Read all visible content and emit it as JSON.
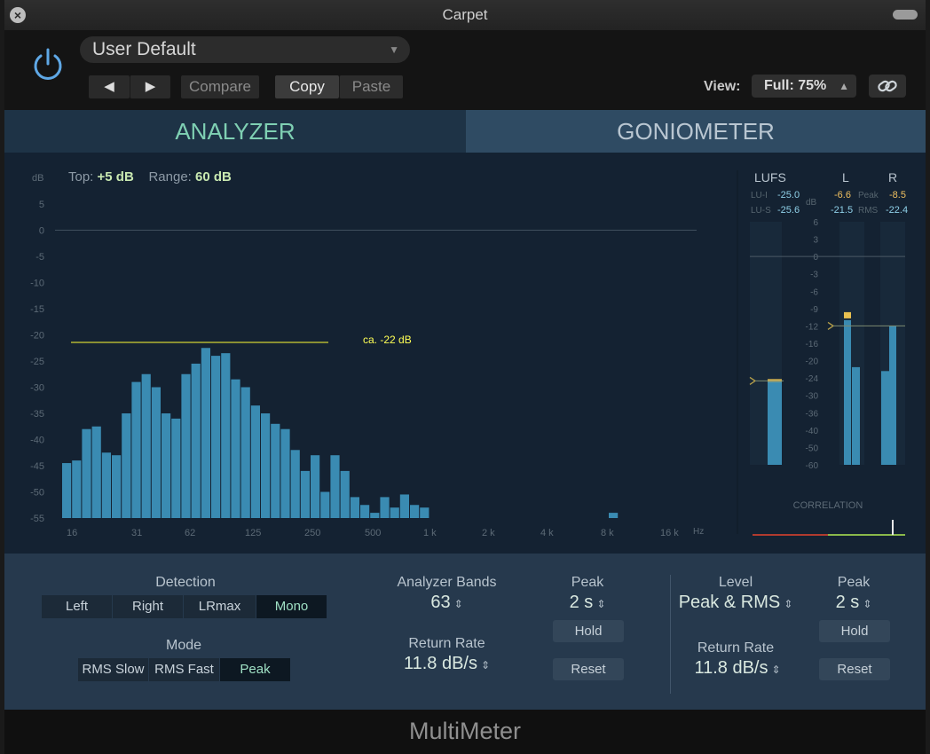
{
  "window": {
    "title": "Carpet"
  },
  "header": {
    "preset": "User Default",
    "nav_prev": "◀",
    "nav_next": "▶",
    "compare": "Compare",
    "copy": "Copy",
    "paste": "Paste",
    "view_label": "View:",
    "view_value": "Full: 75%"
  },
  "tabs": {
    "analyzer": "ANALYZER",
    "goniometer": "GONIOMETER"
  },
  "analyzer": {
    "top_label": "Top:",
    "top_value": "+5 dB",
    "range_label": "Range:",
    "range_value": "60 dB",
    "annotation": "ca. -22 dB"
  },
  "meters": {
    "lufs_header": "LUFS",
    "l_header": "L",
    "r_header": "R",
    "lu_i_label": "LU-I",
    "lu_i_value": "-25.0",
    "lu_s_label": "LU-S",
    "lu_s_value": "-25.6",
    "db_unit": "dB",
    "peak_label": "Peak",
    "rms_label": "RMS",
    "l_peak": "-6.6",
    "r_peak": "-8.5",
    "l_rms": "-21.5",
    "r_rms": "-22.4",
    "correlation_label": "CORRELATION",
    "scale": [
      "6",
      "3",
      "0",
      "-3",
      "-6",
      "-9",
      "-12",
      "-16",
      "-20",
      "-24",
      "-30",
      "-36",
      "-40",
      "-50",
      "-60"
    ]
  },
  "chart_data": {
    "type": "bar",
    "title": "",
    "ylabel": "dB",
    "xlabel": "Hz",
    "ylim": [
      -55,
      5
    ],
    "y_ticks": [
      5,
      0,
      -5,
      -10,
      -15,
      -20,
      -25,
      -30,
      -35,
      -40,
      -45,
      -50,
      -55
    ],
    "x_tick_labels": [
      "16",
      "31",
      "62",
      "125",
      "250",
      "500",
      "1 k",
      "2 k",
      "4 k",
      "8 k",
      "16 k"
    ],
    "values": [
      -44.5,
      -44,
      -38,
      -37.5,
      -42.5,
      -43,
      -35,
      -29,
      -27.5,
      -30,
      -35,
      -36,
      -27.5,
      -25.5,
      -22.5,
      -24,
      -23.5,
      -28.5,
      -30,
      -33.5,
      -35,
      -37,
      -38,
      -42,
      -46,
      -43,
      -50,
      -43,
      -46,
      -51,
      -52.5,
      -54,
      -51,
      -53,
      -50.5,
      -52.5,
      -53,
      -55,
      -55,
      -55,
      -55,
      -55,
      -55,
      -55,
      -55,
      -55,
      -55,
      -55,
      -55,
      -55,
      -55,
      -55,
      -55,
      -55,
      -55,
      -54,
      -55,
      -55,
      -55,
      -55,
      -55,
      -55,
      -55
    ],
    "lufs_meter": {
      "integrated": -25.0,
      "short_term": -25.6,
      "marker": -25
    },
    "level_meter": {
      "left": {
        "peak": -6.6,
        "rms": -21.5,
        "hold": -11
      },
      "right": {
        "peak": -8.5,
        "rms": -22.4,
        "hold": -12
      }
    }
  },
  "controls": {
    "detection_label": "Detection",
    "detection_options": [
      "Left",
      "Right",
      "LRmax",
      "Mono"
    ],
    "detection_selected": "Mono",
    "mode_label": "Mode",
    "mode_options": [
      "RMS Slow",
      "RMS Fast",
      "Peak"
    ],
    "mode_selected": "Peak",
    "analyzer_bands_label": "Analyzer Bands",
    "analyzer_bands_value": "63",
    "return_rate_label": "Return Rate",
    "return_rate_value": "11.8 dB/s",
    "peak_label": "Peak",
    "peak_value": "2 s",
    "hold_label": "Hold",
    "reset_label": "Reset",
    "level_label": "Level",
    "level_value": "Peak & RMS",
    "level_return_rate_label": "Return Rate",
    "level_return_rate_value": "11.8 dB/s",
    "level_peak_label": "Peak",
    "level_peak_value": "2 s",
    "level_hold_label": "Hold",
    "level_reset_label": "Reset"
  },
  "footer": {
    "title": "MultiMeter"
  }
}
